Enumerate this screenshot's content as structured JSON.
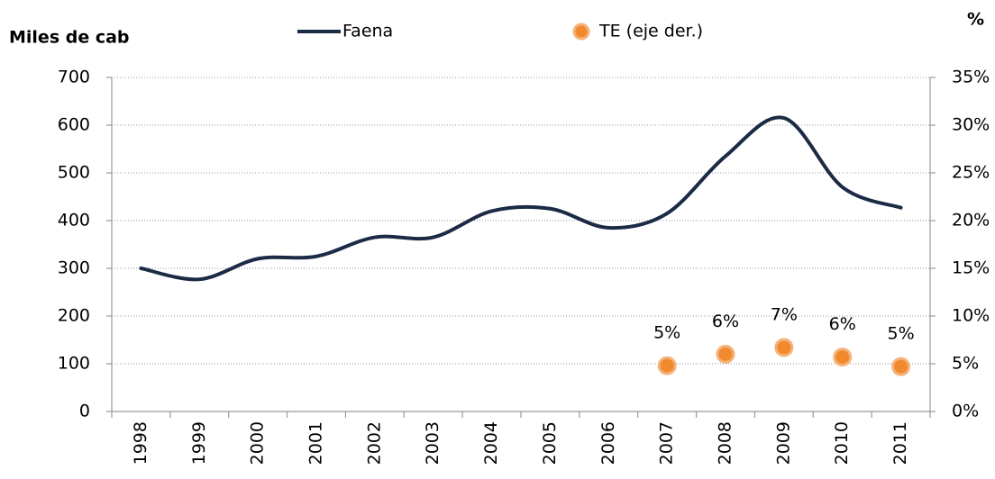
{
  "chart_data": {
    "type": "line",
    "y_label": "Miles de cab",
    "y2_label": "%",
    "categories": [
      "1998",
      "1999",
      "2000",
      "2001",
      "2002",
      "2003",
      "2004",
      "2005",
      "2006",
      "2007",
      "2008",
      "2009",
      "2010",
      "2011"
    ],
    "series": [
      {
        "name": "Faena",
        "color": "#1c2b45",
        "type": "line",
        "values": [
          300,
          277,
          320,
          325,
          365,
          365,
          420,
          425,
          385,
          415,
          535,
          615,
          470,
          427
        ]
      },
      {
        "name": "TE (eje der.)",
        "color": "#f08a2c",
        "type": "scatter",
        "axis": "y2",
        "values": [
          null,
          null,
          null,
          null,
          null,
          null,
          null,
          null,
          null,
          4.8,
          6.0,
          6.7,
          5.7,
          4.7
        ],
        "value_labels": [
          null,
          null,
          null,
          null,
          null,
          null,
          null,
          null,
          null,
          "5%",
          "6%",
          "7%",
          "6%",
          "5%"
        ]
      }
    ],
    "ylim": [
      0,
      700
    ],
    "yticks": [
      0,
      100,
      200,
      300,
      400,
      500,
      600,
      700
    ],
    "y2lim": [
      0,
      35
    ],
    "y2ticks": [
      {
        "value": 0,
        "label": "0%"
      },
      {
        "value": 5,
        "label": "5%"
      },
      {
        "value": 10,
        "label": "10%"
      },
      {
        "value": 15,
        "label": "15%"
      },
      {
        "value": 20,
        "label": "20%"
      },
      {
        "value": 25,
        "label": "25%"
      },
      {
        "value": 30,
        "label": "30%"
      },
      {
        "value": 35,
        "label": "35%"
      }
    ],
    "grid": true,
    "legend": "top"
  }
}
